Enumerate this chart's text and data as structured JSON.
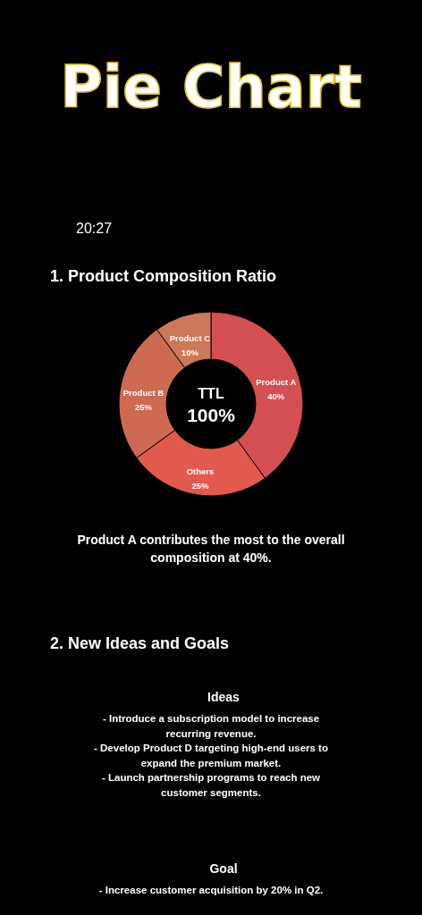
{
  "chart_data": [
    {
      "type": "donut",
      "title": "Pie Chart",
      "subtitle": "1. Product Composition Ratio",
      "categories": [
        "Product A",
        "Others",
        "Product B",
        "Product C"
      ],
      "values": [
        40,
        25,
        25,
        10
      ],
      "value_labels": [
        "40%",
        "25%",
        "25%",
        "10%"
      ],
      "colors": [
        "#d44f52",
        "#e15a4d",
        "#cf6a52",
        "#cd7858"
      ],
      "annotations": [
        "20:27",
        "TTL",
        "100%",
        "Product A contributes the most to the overall composition at 40%."
      ]
    },
    {
      "type": "other",
      "title": "2. New Ideas and Goals",
      "annotations": [
        "Ideas",
        "- Introduce a subscription model to increase recurring revenue.",
        "- Develop Product D targeting high-end users to expand the premium market.",
        "- Launch partnership programs to reach new customer segments.",
        "Goal",
        "- Increase customer acquisition by 20% in Q2."
      ]
    }
  ]
}
